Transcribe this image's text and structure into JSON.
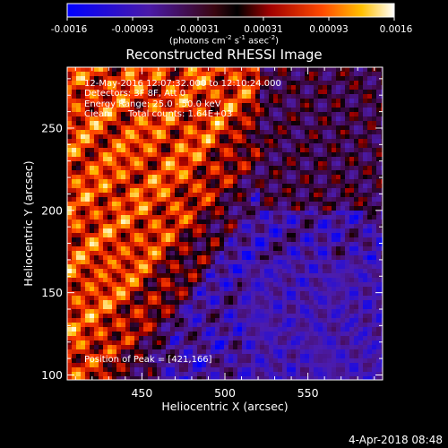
{
  "title": "Reconstructed RHESSI Image",
  "colorbar": {
    "ticks": [
      "-0.0016",
      "-0.00093",
      "-0.00031",
      "0.00031",
      "0.00093",
      "0.0016"
    ],
    "unit_prefix": "(photons cm",
    "unit_sup1": "-2",
    "unit_mid1": " s",
    "unit_sup2": "-1",
    "unit_mid2": " asec",
    "unit_sup3": "-2",
    "unit_suffix": ")",
    "range": [
      -0.0016,
      0.0016
    ]
  },
  "annotations": {
    "time": "12-May-2016 12:07:32.000 to 12:10:24.000",
    "detectors": "Detectors: 3F 8F, Att 0",
    "energy": "Energy Range: 25.0 - 50.0 keV",
    "method": "Clean",
    "counts": "Total counts: 1.64E+03",
    "peak": "Position of Peak = [421,166]"
  },
  "timestamp": "4-Apr-2018 08:48",
  "chart_data": {
    "type": "heatmap",
    "title": "Reconstructed RHESSI Image",
    "xlabel": "Heliocentric X (arcsec)",
    "ylabel": "Heliocentric Y (arcsec)",
    "xlim": [
      405,
      595
    ],
    "ylim": [
      97,
      287
    ],
    "xticks": [
      450,
      500,
      550
    ],
    "yticks": [
      100,
      150,
      200,
      250
    ],
    "peak": [
      421,
      166
    ],
    "colormap": "rainbow-like: blue to purple to red to orange to yellow to white"
  }
}
